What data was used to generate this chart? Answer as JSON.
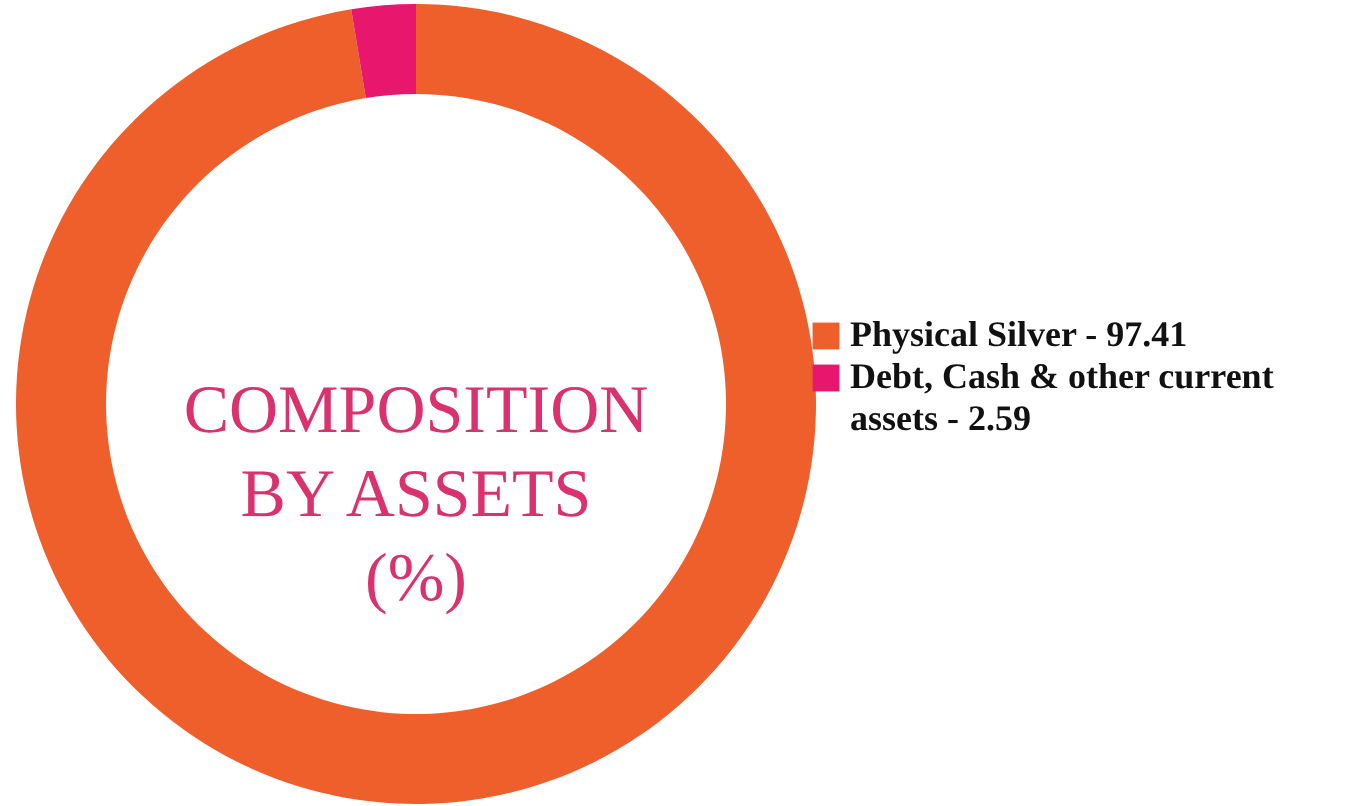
{
  "chart_data": {
    "type": "donut",
    "title": "COMPOSITION BY ASSETS (%)",
    "categories": [
      "Physical Silver - 97.41",
      "Debt, Cash & other current assets - 2.59"
    ],
    "values": [
      97.41,
      2.59
    ],
    "colors": [
      "#ee5f2b",
      "#e8176d"
    ],
    "legend": "right"
  }
}
